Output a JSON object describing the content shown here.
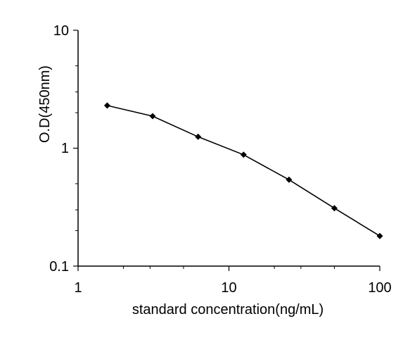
{
  "chart_data": {
    "type": "line",
    "title": "",
    "xlabel": "standard concentration(ng/mL)",
    "ylabel": "O.D(450nm)",
    "xscale": "log",
    "yscale": "log",
    "xlim": [
      1,
      100
    ],
    "ylim": [
      0.1,
      10
    ],
    "x_ticks": [
      "1",
      "10",
      "100"
    ],
    "y_ticks": [
      "0.1",
      "1",
      "10"
    ],
    "grid": false,
    "legend": "none",
    "series": [
      {
        "x": [
          1.56,
          3.12,
          6.25,
          12.5,
          25,
          50,
          100
        ],
        "y": [
          2.3,
          1.87,
          1.25,
          0.88,
          0.54,
          0.31,
          0.18
        ],
        "color": "#000000",
        "marker": "diamond"
      }
    ]
  }
}
